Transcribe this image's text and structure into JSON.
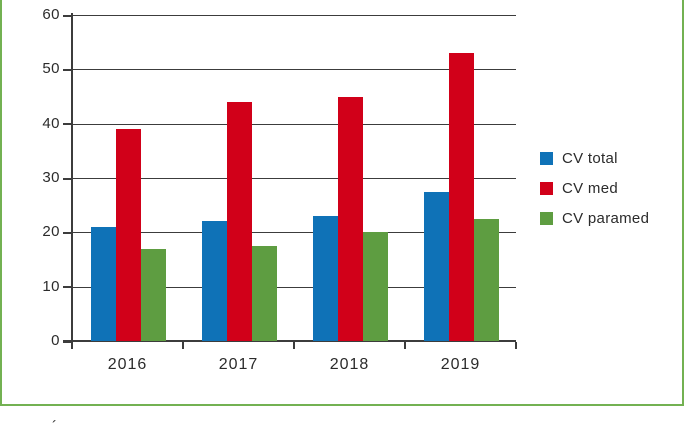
{
  "chart_data": {
    "type": "bar",
    "categories": [
      "2016",
      "2017",
      "2018",
      "2019"
    ],
    "series": [
      {
        "name": "CV total",
        "color": "#0f72b7",
        "values": [
          21,
          22,
          23,
          27.5
        ]
      },
      {
        "name": "CV med",
        "color": "#d10019",
        "values": [
          39,
          44,
          45,
          53
        ]
      },
      {
        "name": "CV paramed",
        "color": "#5e9d41",
        "values": [
          17,
          17.5,
          20,
          22.5
        ]
      }
    ],
    "title": "",
    "xlabel": "",
    "ylabel": "",
    "ylim": [
      0,
      60
    ],
    "ytick_interval": 10,
    "grid": true,
    "legend_position": "right"
  },
  "colors": {
    "frame": "#73b152",
    "axis": "#3c3c3c",
    "text": "#2b2b2b",
    "background": "#ffffff"
  },
  "caption_fragment": "´"
}
